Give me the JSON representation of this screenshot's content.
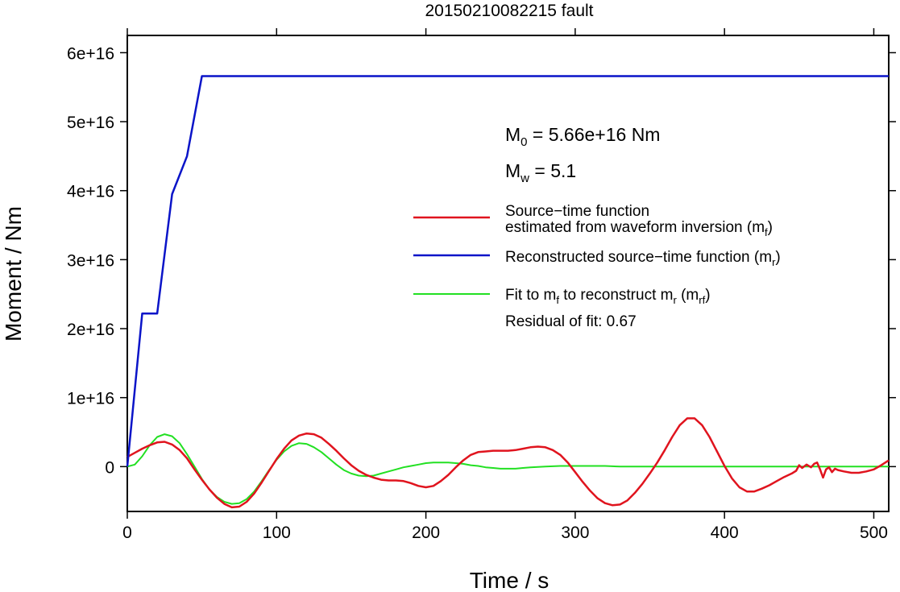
{
  "chart_data": {
    "type": "line",
    "title": "20150210082215 fault",
    "xlabel": "Time / s",
    "ylabel": "Moment / Nm",
    "xlim": [
      0,
      510
    ],
    "ylim": [
      -6500000000000000.0,
      6.25e+16
    ],
    "xticks": [
      {
        "value": 0,
        "label": "0"
      },
      {
        "value": 100,
        "label": "100"
      },
      {
        "value": 200,
        "label": "200"
      },
      {
        "value": 300,
        "label": "300"
      },
      {
        "value": 400,
        "label": "400"
      },
      {
        "value": 500,
        "label": "500"
      }
    ],
    "yticks": [
      {
        "value": 0,
        "label": "0"
      },
      {
        "value": 1e+16,
        "label": "1e+16"
      },
      {
        "value": 2e+16,
        "label": "2e+16"
      },
      {
        "value": 3e+16,
        "label": "3e+16"
      },
      {
        "value": 4e+16,
        "label": "4e+16"
      },
      {
        "value": 5e+16,
        "label": "5e+16"
      },
      {
        "value": 6e+16,
        "label": "6e+16"
      }
    ],
    "grid": false,
    "legend_position": "right",
    "annotations": {
      "m0": {
        "label": "M",
        "sub": "0",
        "rest": " = 5.66e+16 Nm"
      },
      "mw": {
        "label": "M",
        "sub": "w",
        "rest": " = 5.1"
      },
      "residual": "Residual of fit: 0.67"
    },
    "series": [
      {
        "key": "mf",
        "color": "#e0141e",
        "legend_line1": "Source−time function",
        "legend_line2_pre": "estimated from waveform inversion (m",
        "legend_line2_sub": "f",
        "legend_line2_post": ")",
        "points": [
          [
            0,
            1400000000000000.0
          ],
          [
            5,
            2000000000000000.0
          ],
          [
            10,
            2600000000000000.0
          ],
          [
            15,
            3100000000000000.0
          ],
          [
            20,
            3500000000000000.0
          ],
          [
            25,
            3600000000000000.0
          ],
          [
            30,
            3200000000000000.0
          ],
          [
            35,
            2400000000000000.0
          ],
          [
            40,
            1200000000000000.0
          ],
          [
            45,
            -400000000000000.0
          ],
          [
            50,
            -1900000000000000.0
          ],
          [
            55,
            -3300000000000000.0
          ],
          [
            60,
            -4500000000000000.0
          ],
          [
            65,
            -5400000000000000.0
          ],
          [
            70,
            -5900000000000000.0
          ],
          [
            75,
            -5800000000000000.0
          ],
          [
            80,
            -5100000000000000.0
          ],
          [
            85,
            -3900000000000000.0
          ],
          [
            90,
            -2300000000000000.0
          ],
          [
            95,
            -600000000000000.0
          ],
          [
            100,
            1100000000000000.0
          ],
          [
            105,
            2600000000000000.0
          ],
          [
            110,
            3800000000000000.0
          ],
          [
            115,
            4500000000000000.0
          ],
          [
            120,
            4800000000000000.0
          ],
          [
            125,
            4700000000000000.0
          ],
          [
            130,
            4200000000000000.0
          ],
          [
            135,
            3300000000000000.0
          ],
          [
            140,
            2300000000000000.0
          ],
          [
            145,
            1200000000000000.0
          ],
          [
            150,
            200000000000000.0
          ],
          [
            155,
            -600000000000000.0
          ],
          [
            160,
            -1200000000000000.0
          ],
          [
            165,
            -1600000000000000.0
          ],
          [
            170,
            -1900000000000000.0
          ],
          [
            175,
            -2000000000000000.0
          ],
          [
            180,
            -2000000000000000.0
          ],
          [
            185,
            -2100000000000000.0
          ],
          [
            190,
            -2400000000000000.0
          ],
          [
            195,
            -2800000000000000.0
          ],
          [
            200,
            -3000000000000000.0
          ],
          [
            205,
            -2800000000000000.0
          ],
          [
            210,
            -2100000000000000.0
          ],
          [
            215,
            -1200000000000000.0
          ],
          [
            220,
            -100000000000000.0
          ],
          [
            225,
            900000000000000.0
          ],
          [
            230,
            1700000000000000.0
          ],
          [
            235,
            2100000000000000.0
          ],
          [
            240,
            2200000000000000.0
          ],
          [
            245,
            2300000000000000.0
          ],
          [
            250,
            2300000000000000.0
          ],
          [
            255,
            2300000000000000.0
          ],
          [
            260,
            2400000000000000.0
          ],
          [
            265,
            2600000000000000.0
          ],
          [
            270,
            2800000000000000.0
          ],
          [
            275,
            2900000000000000.0
          ],
          [
            280,
            2800000000000000.0
          ],
          [
            285,
            2400000000000000.0
          ],
          [
            290,
            1700000000000000.0
          ],
          [
            295,
            600000000000000.0
          ],
          [
            300,
            -800000000000000.0
          ],
          [
            305,
            -2200000000000000.0
          ],
          [
            310,
            -3500000000000000.0
          ],
          [
            315,
            -4600000000000000.0
          ],
          [
            320,
            -5300000000000000.0
          ],
          [
            325,
            -5600000000000000.0
          ],
          [
            330,
            -5500000000000000.0
          ],
          [
            335,
            -4900000000000000.0
          ],
          [
            340,
            -3800000000000000.0
          ],
          [
            345,
            -2500000000000000.0
          ],
          [
            350,
            -1000000000000000.0
          ],
          [
            355,
            600000000000000.0
          ],
          [
            360,
            2400000000000000.0
          ],
          [
            365,
            4300000000000000.0
          ],
          [
            370,
            6000000000000000.0
          ],
          [
            375,
            7000000000000000.0
          ],
          [
            380,
            7000000000000000.0
          ],
          [
            385,
            6000000000000000.0
          ],
          [
            390,
            4300000000000000.0
          ],
          [
            395,
            2200000000000000.0
          ],
          [
            400,
            100000000000000.0
          ],
          [
            405,
            -1700000000000000.0
          ],
          [
            410,
            -3000000000000000.0
          ],
          [
            415,
            -3600000000000000.0
          ],
          [
            420,
            -3600000000000000.0
          ],
          [
            425,
            -3200000000000000.0
          ],
          [
            430,
            -2700000000000000.0
          ],
          [
            435,
            -2100000000000000.0
          ],
          [
            440,
            -1500000000000000.0
          ],
          [
            445,
            -1000000000000000.0
          ],
          [
            448,
            -600000000000000.0
          ],
          [
            450,
            200000000000000.0
          ],
          [
            452,
            -200000000000000.0
          ],
          [
            455,
            300000000000000.0
          ],
          [
            458,
            -100000000000000.0
          ],
          [
            460,
            400000000000000.0
          ],
          [
            462,
            600000000000000.0
          ],
          [
            464,
            -400000000000000.0
          ],
          [
            466,
            -1600000000000000.0
          ],
          [
            468,
            -400000000000000.0
          ],
          [
            470,
            -100000000000000.0
          ],
          [
            472,
            -800000000000000.0
          ],
          [
            474,
            -300000000000000.0
          ],
          [
            476,
            -500000000000000.0
          ],
          [
            480,
            -700000000000000.0
          ],
          [
            485,
            -900000000000000.0
          ],
          [
            490,
            -900000000000000.0
          ],
          [
            495,
            -700000000000000.0
          ],
          [
            500,
            -400000000000000.0
          ],
          [
            505,
            200000000000000.0
          ],
          [
            510,
            900000000000000.0
          ]
        ]
      },
      {
        "key": "mr",
        "color": "#0a14c8",
        "legend_pre": "Reconstructed source−time function (m",
        "legend_sub": "r",
        "legend_post": ")",
        "points": [
          [
            0,
            0
          ],
          [
            10,
            2.22e+16
          ],
          [
            20,
            2.22e+16
          ],
          [
            30,
            3.95e+16
          ],
          [
            40,
            4.5e+16
          ],
          [
            50,
            5.66e+16
          ],
          [
            510,
            5.66e+16
          ]
        ]
      },
      {
        "key": "mrf",
        "color": "#22e022",
        "legend_pre": "Fit to m",
        "legend_sub1": "f",
        "legend_mid": " to reconstruct m",
        "legend_sub2": "r",
        "legend_mid2": " (m",
        "legend_sub3": "rf",
        "legend_post": ")",
        "points": [
          [
            0,
            0
          ],
          [
            5,
            300000000000000.0
          ],
          [
            10,
            1500000000000000.0
          ],
          [
            15,
            3100000000000000.0
          ],
          [
            20,
            4300000000000000.0
          ],
          [
            25,
            4700000000000000.0
          ],
          [
            30,
            4400000000000000.0
          ],
          [
            35,
            3400000000000000.0
          ],
          [
            40,
            1800000000000000.0
          ],
          [
            45,
            0
          ],
          [
            50,
            -1800000000000000.0
          ],
          [
            55,
            -3300000000000000.0
          ],
          [
            60,
            -4400000000000000.0
          ],
          [
            65,
            -5100000000000000.0
          ],
          [
            70,
            -5400000000000000.0
          ],
          [
            75,
            -5300000000000000.0
          ],
          [
            80,
            -4700000000000000.0
          ],
          [
            85,
            -3600000000000000.0
          ],
          [
            90,
            -2100000000000000.0
          ],
          [
            95,
            -500000000000000.0
          ],
          [
            100,
            1000000000000000.0
          ],
          [
            105,
            2200000000000000.0
          ],
          [
            110,
            3000000000000000.0
          ],
          [
            115,
            3400000000000000.0
          ],
          [
            120,
            3300000000000000.0
          ],
          [
            125,
            2800000000000000.0
          ],
          [
            130,
            2100000000000000.0
          ],
          [
            135,
            1200000000000000.0
          ],
          [
            140,
            300000000000000.0
          ],
          [
            145,
            -500000000000000.0
          ],
          [
            150,
            -1000000000000000.0
          ],
          [
            155,
            -1300000000000000.0
          ],
          [
            160,
            -1400000000000000.0
          ],
          [
            165,
            -1300000000000000.0
          ],
          [
            170,
            -1000000000000000.0
          ],
          [
            175,
            -700000000000000.0
          ],
          [
            180,
            -400000000000000.0
          ],
          [
            185,
            -100000000000000.0
          ],
          [
            190,
            100000000000000.0
          ],
          [
            195,
            300000000000000.0
          ],
          [
            200,
            500000000000000.0
          ],
          [
            205,
            600000000000000.0
          ],
          [
            210,
            600000000000000.0
          ],
          [
            215,
            600000000000000.0
          ],
          [
            220,
            500000000000000.0
          ],
          [
            225,
            400000000000000.0
          ],
          [
            230,
            200000000000000.0
          ],
          [
            235,
            100000000000000.0
          ],
          [
            240,
            -100000000000000.0
          ],
          [
            245,
            -200000000000000.0
          ],
          [
            250,
            -300000000000000.0
          ],
          [
            255,
            -300000000000000.0
          ],
          [
            260,
            -300000000000000.0
          ],
          [
            265,
            -200000000000000.0
          ],
          [
            270,
            -100000000000000.0
          ],
          [
            280,
            0
          ],
          [
            290,
            100000000000000.0
          ],
          [
            300,
            100000000000000.0
          ],
          [
            310,
            100000000000000.0
          ],
          [
            320,
            100000000000000.0
          ],
          [
            330,
            0
          ],
          [
            340,
            0
          ],
          [
            350,
            0
          ],
          [
            360,
            0
          ],
          [
            380,
            0
          ],
          [
            400,
            0
          ],
          [
            420,
            0
          ],
          [
            440,
            0
          ],
          [
            460,
            0
          ],
          [
            480,
            0
          ],
          [
            500,
            0
          ],
          [
            510,
            0
          ]
        ]
      }
    ]
  }
}
